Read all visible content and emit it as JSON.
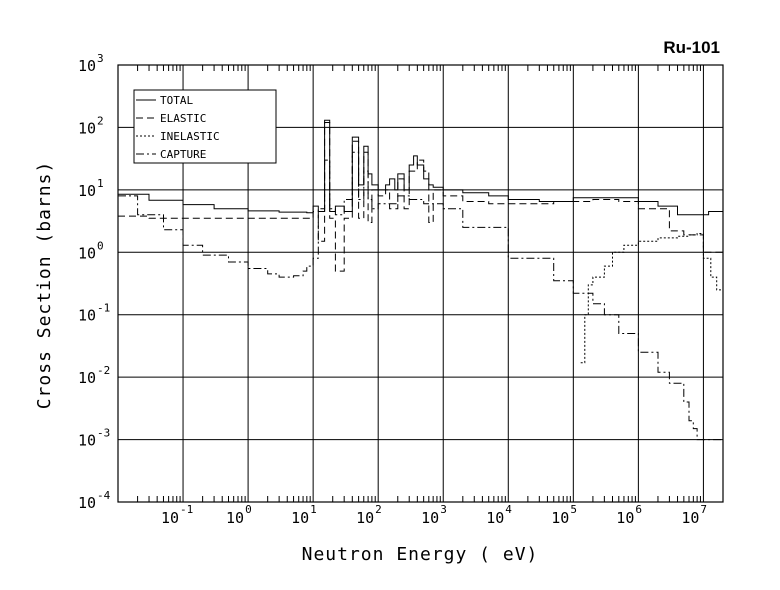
{
  "chart_data": {
    "type": "line",
    "title": "Ru-101",
    "xlabel": "Neutron Energy ( eV)",
    "ylabel": "Cross Section (barns)",
    "x_scale": "log",
    "y_scale": "log",
    "xlim": [
      0.01,
      20000000
    ],
    "ylim": [
      0.0001,
      1000
    ],
    "x_ticks": [
      {
        "value": 0.1,
        "base": "10",
        "exp": "-1"
      },
      {
        "value": 1,
        "base": "10",
        "exp": "0"
      },
      {
        "value": 10,
        "base": "10",
        "exp": "1"
      },
      {
        "value": 100,
        "base": "10",
        "exp": "2"
      },
      {
        "value": 1000,
        "base": "10",
        "exp": "3"
      },
      {
        "value": 10000,
        "base": "10",
        "exp": "4"
      },
      {
        "value": 100000,
        "base": "10",
        "exp": "5"
      },
      {
        "value": 1000000,
        "base": "10",
        "exp": "6"
      },
      {
        "value": 10000000,
        "base": "10",
        "exp": "7"
      }
    ],
    "y_ticks": [
      {
        "value": 0.0001,
        "base": "10",
        "exp": "-4"
      },
      {
        "value": 0.001,
        "base": "10",
        "exp": "-3"
      },
      {
        "value": 0.01,
        "base": "10",
        "exp": "-2"
      },
      {
        "value": 0.1,
        "base": "10",
        "exp": "-1"
      },
      {
        "value": 1,
        "base": "10",
        "exp": "0"
      },
      {
        "value": 10,
        "base": "10",
        "exp": "1"
      },
      {
        "value": 100,
        "base": "10",
        "exp": "2"
      },
      {
        "value": 1000,
        "base": "10",
        "exp": "3"
      }
    ],
    "grid": true,
    "legend_position": "top-left",
    "series": [
      {
        "name": "TOTAL",
        "dash": "solid",
        "step": true,
        "x": [
          0.01,
          0.03,
          0.1,
          0.3,
          1,
          3,
          8,
          10,
          12,
          15,
          18,
          22,
          30,
          40,
          50,
          60,
          70,
          80,
          100,
          130,
          150,
          180,
          200,
          250,
          300,
          350,
          400,
          500,
          600,
          700,
          1000,
          2000,
          5000,
          10000,
          30000,
          100000,
          300000,
          1000000,
          2000000,
          4000000,
          8000000,
          12000000,
          20000000
        ],
        "y": [
          8.5,
          6.8,
          5.8,
          5.0,
          4.6,
          4.4,
          4.3,
          5.5,
          4.5,
          130,
          4.5,
          5.5,
          4.5,
          70,
          12,
          50,
          18,
          12,
          10,
          12,
          15,
          10,
          18,
          10,
          25,
          35,
          25,
          15,
          12,
          11,
          10,
          9.0,
          8.0,
          7.0,
          6.5,
          7.5,
          7.5,
          6.5,
          5.5,
          4.0,
          4.0,
          4.5,
          4.0
        ]
      },
      {
        "name": "ELASTIC",
        "dash": "dashed",
        "step": true,
        "x": [
          0.01,
          0.03,
          0.1,
          1,
          8,
          10,
          12,
          15,
          18,
          22,
          30,
          40,
          50,
          60,
          70,
          80,
          100,
          130,
          150,
          200,
          250,
          300,
          400,
          500,
          600,
          700,
          1000,
          2000,
          5000,
          10000,
          50000,
          200000,
          500000,
          1000000,
          3000000,
          5000000,
          10000000,
          20000000
        ],
        "y": [
          3.8,
          3.5,
          3.5,
          3.5,
          3.5,
          4.5,
          1.5,
          120,
          3.5,
          0.5,
          3.5,
          60,
          3.5,
          40,
          3.0,
          10,
          8,
          10,
          5,
          15,
          5,
          20,
          30,
          20,
          3,
          10,
          8,
          6.5,
          6.0,
          6.0,
          6.5,
          7.0,
          6.5,
          5.0,
          2.2,
          1.9,
          1.0,
          2.8
        ]
      },
      {
        "name": "INELASTIC",
        "dash": "dotted",
        "step": true,
        "x": [
          130000,
          150000,
          170000,
          200000,
          300000,
          400000,
          600000,
          1000000,
          2000000,
          4000000,
          6000000,
          8000000,
          10000000,
          13000000,
          16000000,
          20000000
        ],
        "y": [
          0.017,
          0.1,
          0.3,
          0.4,
          0.6,
          1.0,
          1.3,
          1.5,
          1.7,
          1.8,
          1.9,
          2.0,
          0.8,
          0.4,
          0.25,
          0.1
        ]
      },
      {
        "name": "CAPTURE",
        "dash": "dashdot",
        "step": true,
        "x": [
          0.01,
          0.02,
          0.05,
          0.1,
          0.2,
          0.5,
          1,
          2,
          3,
          4,
          5,
          7,
          8,
          10,
          12,
          15,
          18,
          22,
          30,
          40,
          50,
          60,
          70,
          80,
          100,
          200,
          300,
          500,
          1000,
          2000,
          10000,
          50000,
          100000,
          200000,
          300000,
          500000,
          1000000,
          2000000,
          3000000,
          5000000,
          6000000,
          7000000,
          8000000,
          10000000,
          20000000
        ],
        "y": [
          8.0,
          4.0,
          2.3,
          1.3,
          0.9,
          0.7,
          0.55,
          0.45,
          0.4,
          0.4,
          0.42,
          0.5,
          0.6,
          0.8,
          5,
          30,
          5,
          4,
          7,
          40,
          7,
          20,
          7,
          5,
          6,
          8,
          7,
          6,
          5,
          2.5,
          0.8,
          0.35,
          0.22,
          0.15,
          0.1,
          0.05,
          0.025,
          0.012,
          0.008,
          0.004,
          0.002,
          0.0015,
          0.001,
          0.001,
          0.0009
        ]
      }
    ]
  }
}
